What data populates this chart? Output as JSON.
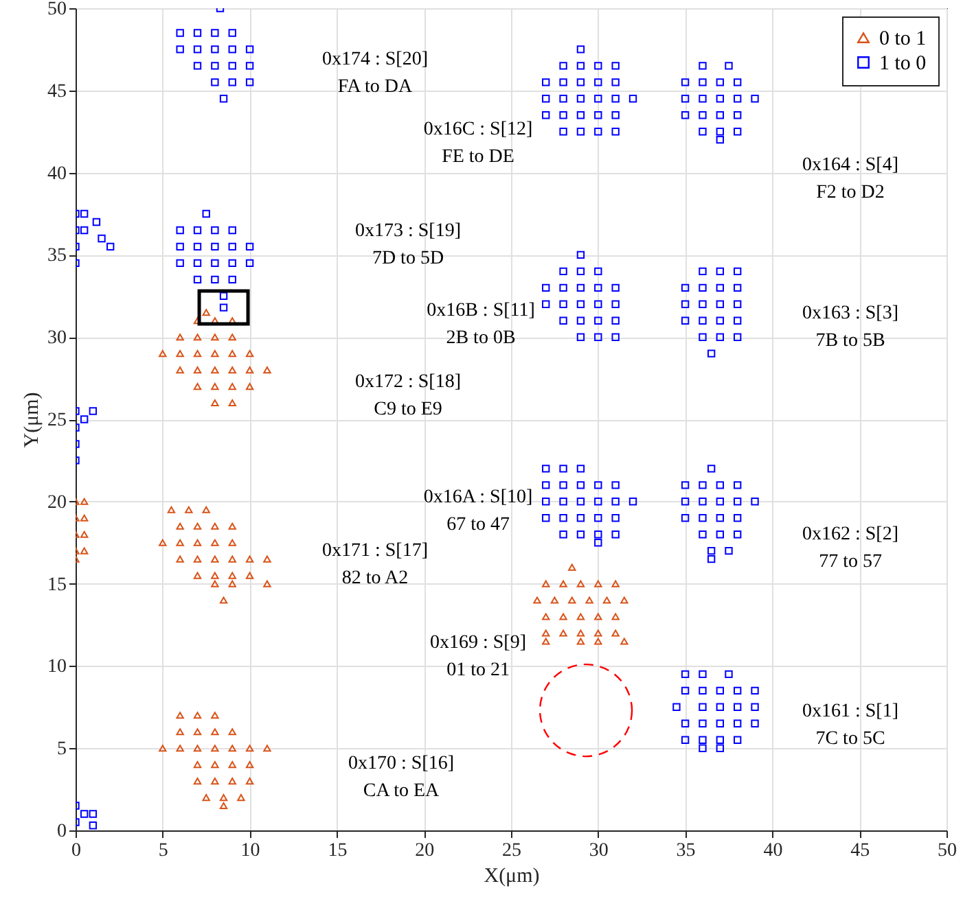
{
  "chart_data": {
    "type": "scatter",
    "xlabel": "X(μm)",
    "ylabel": "Y(μm)",
    "xlim": [
      0,
      50
    ],
    "ylim": [
      0,
      50
    ],
    "xticks": [
      0,
      5,
      10,
      15,
      20,
      25,
      30,
      35,
      40,
      45,
      50
    ],
    "yticks": [
      0,
      5,
      10,
      15,
      20,
      25,
      30,
      35,
      40,
      45,
      50
    ],
    "grid": true,
    "legend": "top right",
    "series": [
      {
        "name": "0 to 1",
        "color": "#d95319",
        "marker": "triangle",
        "x": [
          7.5,
          7,
          8,
          9,
          6,
          7,
          8,
          9,
          5,
          6,
          7,
          8,
          9,
          10,
          6,
          7,
          8,
          9,
          10,
          11,
          7,
          8,
          9,
          10,
          8,
          9,
          0,
          0.5,
          0,
          0.5,
          0,
          0.5,
          0,
          0.5,
          0,
          5.5,
          6.5,
          7.5,
          6,
          7,
          8,
          9,
          5,
          6,
          7,
          8,
          9,
          6,
          7,
          8,
          9,
          10,
          11,
          7,
          8,
          9,
          10,
          8,
          9,
          11,
          8.5,
          28.5,
          27,
          28,
          29,
          30,
          31,
          26.5,
          27.5,
          28.5,
          29.5,
          30.5,
          31.5,
          27,
          28,
          29,
          30,
          31,
          27,
          28,
          29,
          30,
          31,
          27,
          29,
          30,
          31.5,
          6,
          7,
          8,
          6,
          7,
          8,
          9,
          5,
          6,
          7,
          8,
          9,
          10,
          11,
          7,
          8,
          9,
          10,
          7,
          8,
          9,
          10,
          7.5,
          8.5,
          9.5,
          8.5
        ],
        "values": [
          31.5,
          31,
          31,
          31,
          30,
          30,
          30,
          30,
          29,
          29,
          29,
          29,
          29,
          29,
          28,
          28,
          28,
          28,
          28,
          28,
          27,
          27,
          27,
          27,
          26,
          26,
          20,
          20,
          19,
          19,
          18,
          18,
          17,
          17,
          16.5,
          19.5,
          19.5,
          19.5,
          18.5,
          18.5,
          18.5,
          18.5,
          17.5,
          17.5,
          17.5,
          17.5,
          17.5,
          16.5,
          16.5,
          16.5,
          16.5,
          16.5,
          16.5,
          15.5,
          15.5,
          15.5,
          15.5,
          15,
          15,
          15,
          14,
          16,
          15,
          15,
          15,
          15,
          15,
          14,
          14,
          14,
          14,
          14,
          14,
          13,
          13,
          13,
          13,
          13,
          12,
          12,
          12,
          12,
          12,
          11.5,
          11.5,
          11.5,
          11.5,
          7,
          7,
          7,
          6,
          6,
          6,
          6,
          5,
          5,
          5,
          5,
          5,
          5,
          5,
          4,
          4,
          4,
          4,
          3,
          3,
          3,
          3,
          2,
          2,
          2,
          1.5
        ]
      },
      {
        "name": "1 to 0",
        "color": "#0000ff",
        "marker": "square",
        "x": [
          8.3,
          6,
          7,
          8,
          9,
          6,
          7,
          8,
          9,
          10,
          7,
          8,
          9,
          10,
          8,
          9,
          10,
          8.5,
          7.5,
          6,
          7,
          8,
          9,
          6,
          7,
          8,
          9,
          10,
          6,
          7,
          8,
          9,
          10,
          7,
          8,
          9,
          8.5,
          8.5,
          0,
          0.5,
          1.2,
          0,
          0.5,
          1.5,
          0,
          2,
          0,
          0,
          0.5,
          1,
          0,
          0,
          0,
          0,
          0.5,
          1,
          0,
          1,
          29,
          28,
          29,
          30,
          31,
          27,
          28,
          29,
          30,
          31,
          27,
          28,
          29,
          30,
          31,
          32,
          27,
          28,
          29,
          30,
          31,
          28,
          29,
          30,
          31,
          36,
          37.5,
          35,
          36,
          37,
          38,
          35,
          36,
          37,
          38,
          39,
          35,
          36,
          37,
          38,
          36,
          37,
          38,
          37,
          29,
          28,
          29,
          30,
          27,
          28,
          29,
          30,
          31,
          27,
          28,
          29,
          30,
          31,
          28,
          29,
          30,
          31,
          29,
          30,
          31,
          36,
          37,
          38,
          35,
          36,
          37,
          38,
          35,
          36,
          37,
          38,
          35,
          36,
          37,
          38,
          36,
          37,
          38,
          36.5,
          27,
          28,
          29,
          27,
          28,
          29,
          30,
          31,
          27,
          28,
          29,
          30,
          31,
          32,
          27,
          28,
          29,
          30,
          31,
          28,
          29,
          30,
          31,
          30,
          36.5,
          35,
          36,
          37,
          38,
          35,
          36,
          37,
          38,
          39,
          35,
          36,
          37,
          38,
          36,
          37,
          38,
          36.5,
          37.5,
          36.5,
          35,
          36,
          37.5,
          35,
          36,
          37,
          38,
          39,
          34.5,
          36,
          37,
          38,
          39,
          35,
          36,
          37,
          38,
          39,
          35,
          36,
          37,
          38,
          36,
          37
        ],
        "values": [
          50,
          48.5,
          48.5,
          48.5,
          48.5,
          47.5,
          47.5,
          47.5,
          47.5,
          47.5,
          46.5,
          46.5,
          46.5,
          46.5,
          45.5,
          45.5,
          45.5,
          44.5,
          37.5,
          36.5,
          36.5,
          36.5,
          36.5,
          35.5,
          35.5,
          35.5,
          35.5,
          35.5,
          34.5,
          34.5,
          34.5,
          34.5,
          34.5,
          33.5,
          33.5,
          33.5,
          32.5,
          31.8,
          37.5,
          37.5,
          37,
          36.5,
          36.5,
          36,
          35.5,
          35.5,
          34.5,
          25.5,
          25,
          25.5,
          24.5,
          23.5,
          22.5,
          1.5,
          1,
          1,
          0.5,
          0.3,
          47.5,
          46.5,
          46.5,
          46.5,
          46.5,
          45.5,
          45.5,
          45.5,
          45.5,
          45.5,
          44.5,
          44.5,
          44.5,
          44.5,
          44.5,
          44.5,
          43.5,
          43.5,
          43.5,
          43.5,
          43.5,
          42.5,
          42.5,
          42.5,
          42.5,
          46.5,
          46.5,
          45.5,
          45.5,
          45.5,
          45.5,
          44.5,
          44.5,
          44.5,
          44.5,
          44.5,
          43.5,
          43.5,
          43.5,
          43.5,
          42.5,
          42.5,
          42.5,
          42,
          35,
          34,
          34,
          34,
          33,
          33,
          33,
          33,
          33,
          32,
          32,
          32,
          32,
          32,
          31,
          31,
          31,
          31,
          30,
          30,
          30,
          34,
          34,
          34,
          33,
          33,
          33,
          33,
          32,
          32,
          32,
          32,
          31,
          31,
          31,
          31,
          30,
          30,
          30,
          29,
          22,
          22,
          22,
          21,
          21,
          21,
          21,
          21,
          20,
          20,
          20,
          20,
          20,
          20,
          19,
          19,
          19,
          19,
          19,
          18,
          18,
          18,
          18,
          17.5,
          22,
          21,
          21,
          21,
          21,
          20,
          20,
          20,
          20,
          20,
          19,
          19,
          19,
          19,
          18,
          18,
          18,
          17,
          17,
          16.5,
          9.5,
          9.5,
          9.5,
          8.5,
          8.5,
          8.5,
          8.5,
          8.5,
          7.5,
          7.5,
          7.5,
          7.5,
          7.5,
          6.5,
          6.5,
          6.5,
          6.5,
          6.5,
          5.5,
          5.5,
          5.5,
          5.5,
          5,
          5
        ]
      }
    ],
    "annotations": [
      "0x174 : S[20]\nFA to DA",
      "0x16C : S[12]\nFE to DE",
      "0x164 : S[4]\nF2 to D2",
      "0x173 : S[19]\n7D to 5D",
      "0x16B : S[11]\n2B to 0B",
      "0x163 : S[3]\n7B to 5B",
      "0x172 : S[18]\nC9 to E9",
      "0x16A : S[10]\n67 to 47",
      "0x171 : S[17]\n82 to A2",
      "0x162 : S[2]\n77 to 57",
      "0x169 : S[9]\n01 to 21",
      "0x161 : S[1]\n7C to 5C",
      "0x170 : S[16]\nCA to EA"
    ]
  }
}
